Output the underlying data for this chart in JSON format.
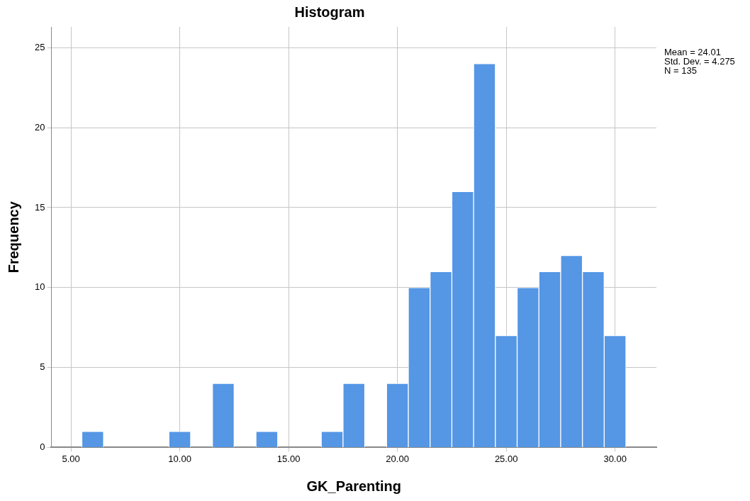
{
  "chart_data": {
    "type": "histogram",
    "title": "Histogram",
    "xlabel": "GK_Parenting",
    "ylabel": "Frequency",
    "bins": [
      5.5,
      6.5,
      7.5,
      8.5,
      9.5,
      10.5,
      11.5,
      12.5,
      13.5,
      14.5,
      15.5,
      16.5,
      17.5,
      18.5,
      19.5,
      20.5,
      21.5,
      22.5,
      23.5,
      24.5,
      25.5,
      26.5,
      27.5,
      28.5,
      29.5,
      30.5
    ],
    "values": [
      1,
      0,
      0,
      0,
      1,
      0,
      4,
      0,
      1,
      0,
      0,
      1,
      4,
      0,
      4,
      10,
      11,
      16,
      24,
      7,
      10,
      11,
      12,
      11,
      7
    ],
    "color": "#5596e5",
    "xlim": [
      4.1,
      31.9
    ],
    "xticks": [
      {
        "value": 5,
        "label": "5.00"
      },
      {
        "value": 10,
        "label": "10.00"
      },
      {
        "value": 15,
        "label": "15.00"
      },
      {
        "value": 20,
        "label": "20.00"
      },
      {
        "value": 25,
        "label": "25.00"
      },
      {
        "value": 30,
        "label": "30.00"
      }
    ],
    "ylim": [
      0,
      26.3
    ],
    "yticks": [
      0,
      5,
      10,
      15,
      20,
      25
    ],
    "grid": true,
    "annotations": [
      "Mean = 24.01",
      "Std. Dev. = 4.275",
      "N = 135"
    ]
  }
}
